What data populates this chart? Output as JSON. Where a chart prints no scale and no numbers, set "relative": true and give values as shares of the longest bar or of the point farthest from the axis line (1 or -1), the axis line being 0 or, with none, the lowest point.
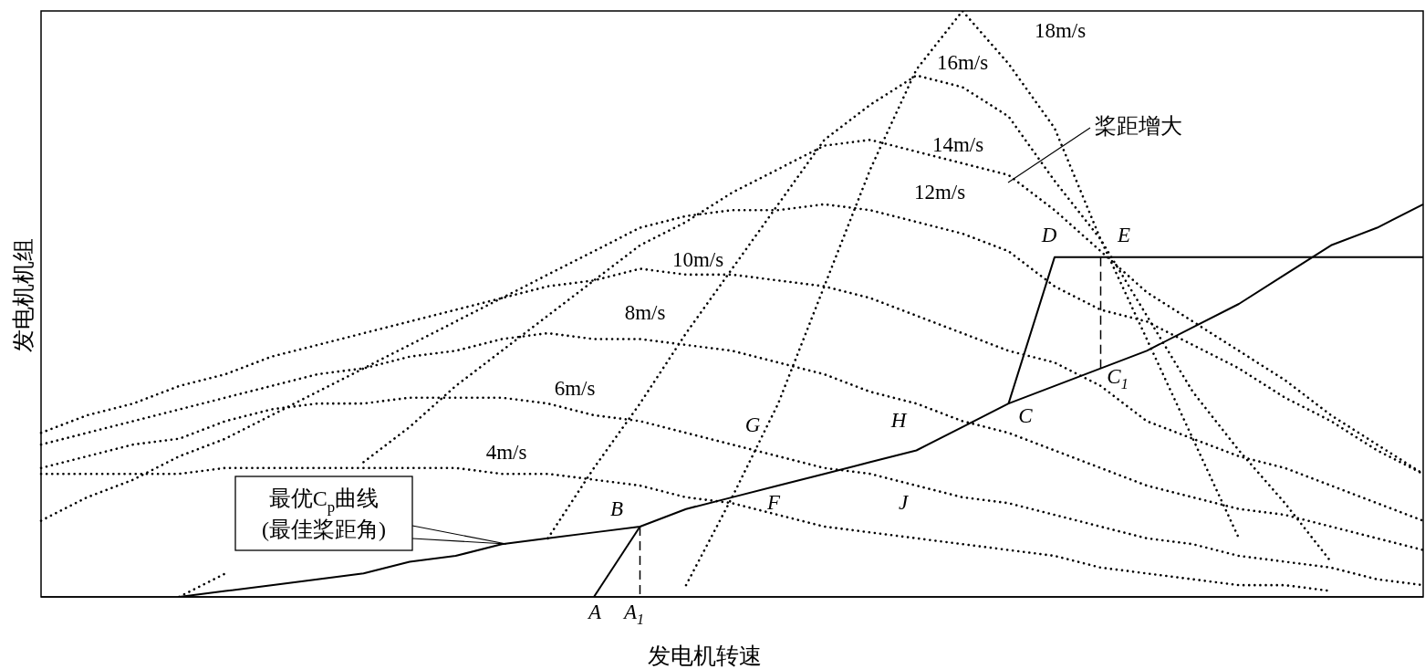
{
  "chart_data": {
    "type": "line",
    "xlabel": "发电机转速",
    "ylabel": "发电机机组",
    "relative": true,
    "categories": [
      null,
      null,
      null,
      null,
      null,
      null,
      null,
      null,
      null,
      null,
      null,
      null,
      null,
      null,
      null,
      null,
      null,
      null,
      null,
      null,
      null,
      null,
      null,
      null,
      null,
      null,
      null,
      null,
      null,
      null,
      null
    ],
    "series": [
      {
        "name": "4m/s",
        "color": "#000000",
        "line_style": "dotted",
        "values": [
          0.21,
          0.21,
          0.21,
          0.21,
          0.22,
          0.22,
          0.22,
          0.22,
          0.22,
          0.22,
          0.21,
          0.21,
          0.2,
          0.19,
          0.17,
          0.16,
          0.14,
          0.12,
          0.11,
          0.1,
          0.09,
          0.08,
          0.07,
          0.05,
          0.04,
          0.03,
          0.02,
          0.02,
          0.01,
          null,
          null
        ]
      },
      {
        "name": "6m/s",
        "color": "#000000",
        "line_style": "dotted",
        "values": [
          0.22,
          0.24,
          0.26,
          0.27,
          0.3,
          0.32,
          0.33,
          0.33,
          0.34,
          0.34,
          0.34,
          0.33,
          0.31,
          0.3,
          0.28,
          0.26,
          0.24,
          0.22,
          0.21,
          0.19,
          0.17,
          0.16,
          0.14,
          0.12,
          0.1,
          0.09,
          0.07,
          0.06,
          0.05,
          0.03,
          0.02
        ]
      },
      {
        "name": "8m/s",
        "color": "#000000",
        "line_style": "dotted",
        "values": [
          0.26,
          0.28,
          0.3,
          0.32,
          0.34,
          0.36,
          0.38,
          0.39,
          0.41,
          0.42,
          0.44,
          0.45,
          0.44,
          0.44,
          0.43,
          0.42,
          0.4,
          0.38,
          0.35,
          0.33,
          0.3,
          0.28,
          0.25,
          0.22,
          0.19,
          0.17,
          0.15,
          0.14,
          0.12,
          0.1,
          0.08
        ]
      },
      {
        "name": "10m/s",
        "color": "#000000",
        "line_style": "dotted",
        "values": [
          0.28,
          0.31,
          0.33,
          0.36,
          0.38,
          0.41,
          0.43,
          0.45,
          0.47,
          0.49,
          0.51,
          0.53,
          0.54,
          0.56,
          0.55,
          0.55,
          0.54,
          0.53,
          0.51,
          0.48,
          0.45,
          0.42,
          0.4,
          0.36,
          0.3,
          0.27,
          0.24,
          0.22,
          0.19,
          0.16,
          0.13
        ]
      },
      {
        "name": "12m/s",
        "color": "#000000",
        "line_style": "dotted",
        "values": [
          0.13,
          0.17,
          0.2,
          0.24,
          0.27,
          0.31,
          0.35,
          0.39,
          0.43,
          0.47,
          0.51,
          0.55,
          0.59,
          0.63,
          0.65,
          0.66,
          0.66,
          0.67,
          0.66,
          0.64,
          0.62,
          0.59,
          0.53,
          0.49,
          0.47,
          0.43,
          0.39,
          0.34,
          0.3,
          0.25,
          0.21
        ]
      },
      {
        "name": "14m/s",
        "color": "#000000",
        "line_style": "dotted",
        "values": [
          null,
          null,
          null,
          0.0,
          0.04,
          null,
          null,
          0.23,
          0.29,
          0.36,
          0.42,
          0.48,
          0.54,
          0.6,
          0.64,
          0.69,
          0.73,
          0.77,
          0.78,
          0.76,
          0.74,
          0.72,
          0.66,
          0.59,
          0.52,
          0.47,
          0.42,
          0.37,
          0.31,
          0.26,
          0.21
        ]
      },
      {
        "name": "16m/s",
        "color": "#000000",
        "line_style": "dotted",
        "values": [
          null,
          null,
          null,
          null,
          null,
          null,
          null,
          null,
          null,
          null,
          null,
          0.1,
          0.22,
          0.33,
          0.45,
          0.56,
          0.67,
          0.78,
          0.84,
          0.89,
          0.87,
          0.82,
          0.71,
          0.61,
          0.48,
          0.35,
          0.25,
          0.16,
          0.06,
          null,
          null
        ]
      },
      {
        "name": "18m/s",
        "color": "#000000",
        "line_style": "dotted",
        "values": [
          null,
          null,
          null,
          null,
          null,
          null,
          null,
          null,
          null,
          null,
          null,
          null,
          null,
          null,
          0.02,
          0.17,
          0.33,
          0.53,
          0.73,
          0.9,
          1.0,
          0.91,
          0.8,
          0.61,
          0.44,
          0.27,
          0.1,
          null,
          null,
          null,
          null
        ]
      },
      {
        "name": "最优C$_{p}$曲线\n(最佳桨距角)",
        "color": "#000000",
        "line_style": "solid",
        "values": [
          null,
          null,
          null,
          0.0,
          0.01,
          0.02,
          0.03,
          0.04,
          0.06,
          0.07,
          0.09,
          0.1,
          0.11,
          0.12,
          0.15,
          0.17,
          0.19,
          0.21,
          0.23,
          0.25,
          0.29,
          0.33,
          0.36,
          0.39,
          0.42,
          0.46,
          0.5,
          0.55,
          0.6,
          0.63,
          0.67
        ]
      },
      {
        "color": "#000000",
        "line_style": "solid",
        "values": [
          null,
          null,
          null,
          null,
          null,
          null,
          null,
          null,
          null,
          null,
          null,
          null,
          0.0,
          0.12,
          null,
          null,
          null,
          null,
          null,
          null,
          null,
          null,
          null,
          null,
          null,
          null,
          null,
          null,
          null,
          null,
          null
        ]
      },
      {
        "color": "#000000",
        "line_style": "solid",
        "values": [
          null,
          null,
          null,
          null,
          null,
          null,
          null,
          null,
          null,
          null,
          null,
          null,
          null,
          null,
          null,
          null,
          null,
          null,
          null,
          null,
          null,
          0.33,
          0.58,
          0.58,
          0.58,
          0.58,
          0.58,
          0.58,
          0.58,
          0.58,
          0.58
        ]
      }
    ],
    "annotations": [
      "桨距增大",
      "A",
      "A$_{1}$",
      "B",
      "C",
      "C$_{1}$",
      "D",
      "E",
      "F",
      "G",
      "H",
      "J"
    ]
  }
}
